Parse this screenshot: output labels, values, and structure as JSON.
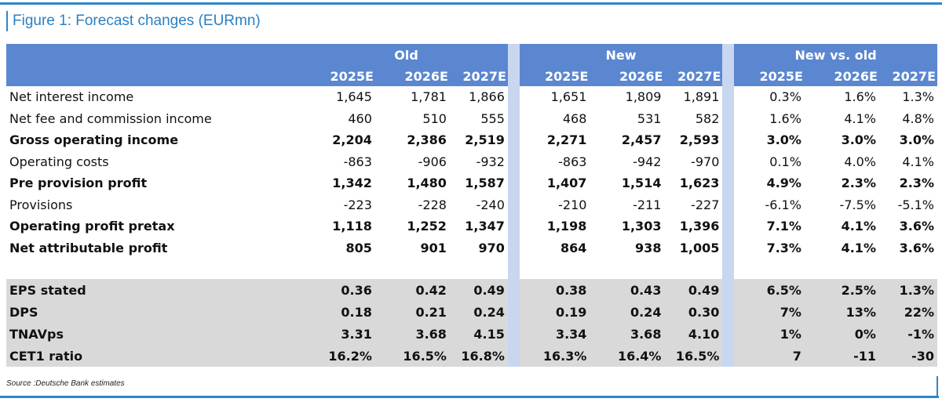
{
  "title": "Figure 1: Forecast changes (EURmn)",
  "groups": [
    "Old",
    "New",
    "New vs. old"
  ],
  "years": [
    "2025E",
    "2026E",
    "2027E"
  ],
  "rows": [
    {
      "label": "Net interest income",
      "bold": false,
      "old": [
        "1,645",
        "1,781",
        "1,866"
      ],
      "new": [
        "1,651",
        "1,809",
        "1,891"
      ],
      "diff": [
        "0.3%",
        "1.6%",
        "1.3%"
      ]
    },
    {
      "label": "Net fee and commission income",
      "bold": false,
      "old": [
        "460",
        "510",
        "555"
      ],
      "new": [
        "468",
        "531",
        "582"
      ],
      "diff": [
        "1.6%",
        "4.1%",
        "4.8%"
      ]
    },
    {
      "label": "Gross operating income",
      "bold": true,
      "old": [
        "2,204",
        "2,386",
        "2,519"
      ],
      "new": [
        "2,271",
        "2,457",
        "2,593"
      ],
      "diff": [
        "3.0%",
        "3.0%",
        "3.0%"
      ]
    },
    {
      "label": "Operating costs",
      "bold": false,
      "old": [
        "-863",
        "-906",
        "-932"
      ],
      "new": [
        "-863",
        "-942",
        "-970"
      ],
      "diff": [
        "0.1%",
        "4.0%",
        "4.1%"
      ]
    },
    {
      "label": "Pre provision profit",
      "bold": true,
      "old": [
        "1,342",
        "1,480",
        "1,587"
      ],
      "new": [
        "1,407",
        "1,514",
        "1,623"
      ],
      "diff": [
        "4.9%",
        "2.3%",
        "2.3%"
      ]
    },
    {
      "label": "Provisions",
      "bold": false,
      "old": [
        "-223",
        "-228",
        "-240"
      ],
      "new": [
        "-210",
        "-211",
        "-227"
      ],
      "diff": [
        "-6.1%",
        "-7.5%",
        "-5.1%"
      ]
    },
    {
      "label": "Operating profit pretax",
      "bold": true,
      "old": [
        "1,118",
        "1,252",
        "1,347"
      ],
      "new": [
        "1,198",
        "1,303",
        "1,396"
      ],
      "diff": [
        "7.1%",
        "4.1%",
        "3.6%"
      ]
    },
    {
      "label": "Net attributable profit",
      "bold": true,
      "old": [
        "805",
        "901",
        "970"
      ],
      "new": [
        "864",
        "938",
        "1,005"
      ],
      "diff": [
        "7.3%",
        "4.1%",
        "3.6%"
      ]
    }
  ],
  "per_share_rows": [
    {
      "label": "EPS stated",
      "old": [
        "0.36",
        "0.42",
        "0.49"
      ],
      "new": [
        "0.38",
        "0.43",
        "0.49"
      ],
      "diff": [
        "6.5%",
        "2.5%",
        "1.3%"
      ]
    },
    {
      "label": "DPS",
      "old": [
        "0.18",
        "0.21",
        "0.24"
      ],
      "new": [
        "0.19",
        "0.24",
        "0.30"
      ],
      "diff": [
        "7%",
        "13%",
        "22%"
      ]
    },
    {
      "label": "TNAVps",
      "old": [
        "3.31",
        "3.68",
        "4.15"
      ],
      "new": [
        "3.34",
        "3.68",
        "4.10"
      ],
      "diff": [
        "1%",
        "0%",
        "-1%"
      ]
    },
    {
      "label": "CET1 ratio",
      "old": [
        "16.2%",
        "16.5%",
        "16.8%"
      ],
      "new": [
        "16.3%",
        "16.4%",
        "16.5%"
      ],
      "diff": [
        "7",
        "-11",
        "-30"
      ]
    }
  ],
  "source": "Source :Deutsche Bank estimates",
  "colors": {
    "header_blue": "#5b87d0",
    "gap_blue": "#c8d7ef",
    "title_blue": "#2a7fc2",
    "shade_grey": "#d9d9d9"
  }
}
